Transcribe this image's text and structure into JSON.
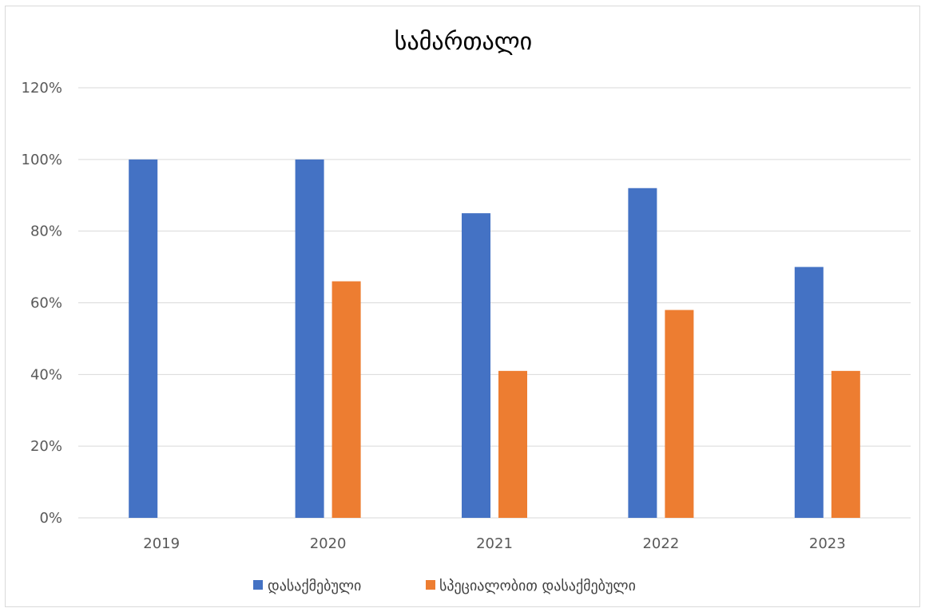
{
  "chart_data": {
    "type": "bar",
    "title": "სამართალი",
    "categories": [
      "2019",
      "2020",
      "2021",
      "2022",
      "2023"
    ],
    "series": [
      {
        "name": "დასაქმებული",
        "values": [
          100,
          100,
          85,
          92,
          70
        ],
        "color": "#4472C4"
      },
      {
        "name": "სპეციალობით დასაქმებული",
        "values": [
          0,
          66,
          41,
          58,
          41
        ],
        "color": "#ED7D31"
      }
    ],
    "ylim": [
      0,
      120
    ],
    "yticks": [
      0,
      20,
      40,
      60,
      80,
      100,
      120
    ],
    "ytick_labels": [
      "0%",
      "20%",
      "40%",
      "60%",
      "80%",
      "100%",
      "120%"
    ],
    "xlabel": "",
    "ylabel": "",
    "grid": true,
    "legend_position": "bottom",
    "colors": {
      "gridline": "#d9d9d9",
      "frame": "#d9d9d9",
      "tick_text": "#595959"
    }
  }
}
